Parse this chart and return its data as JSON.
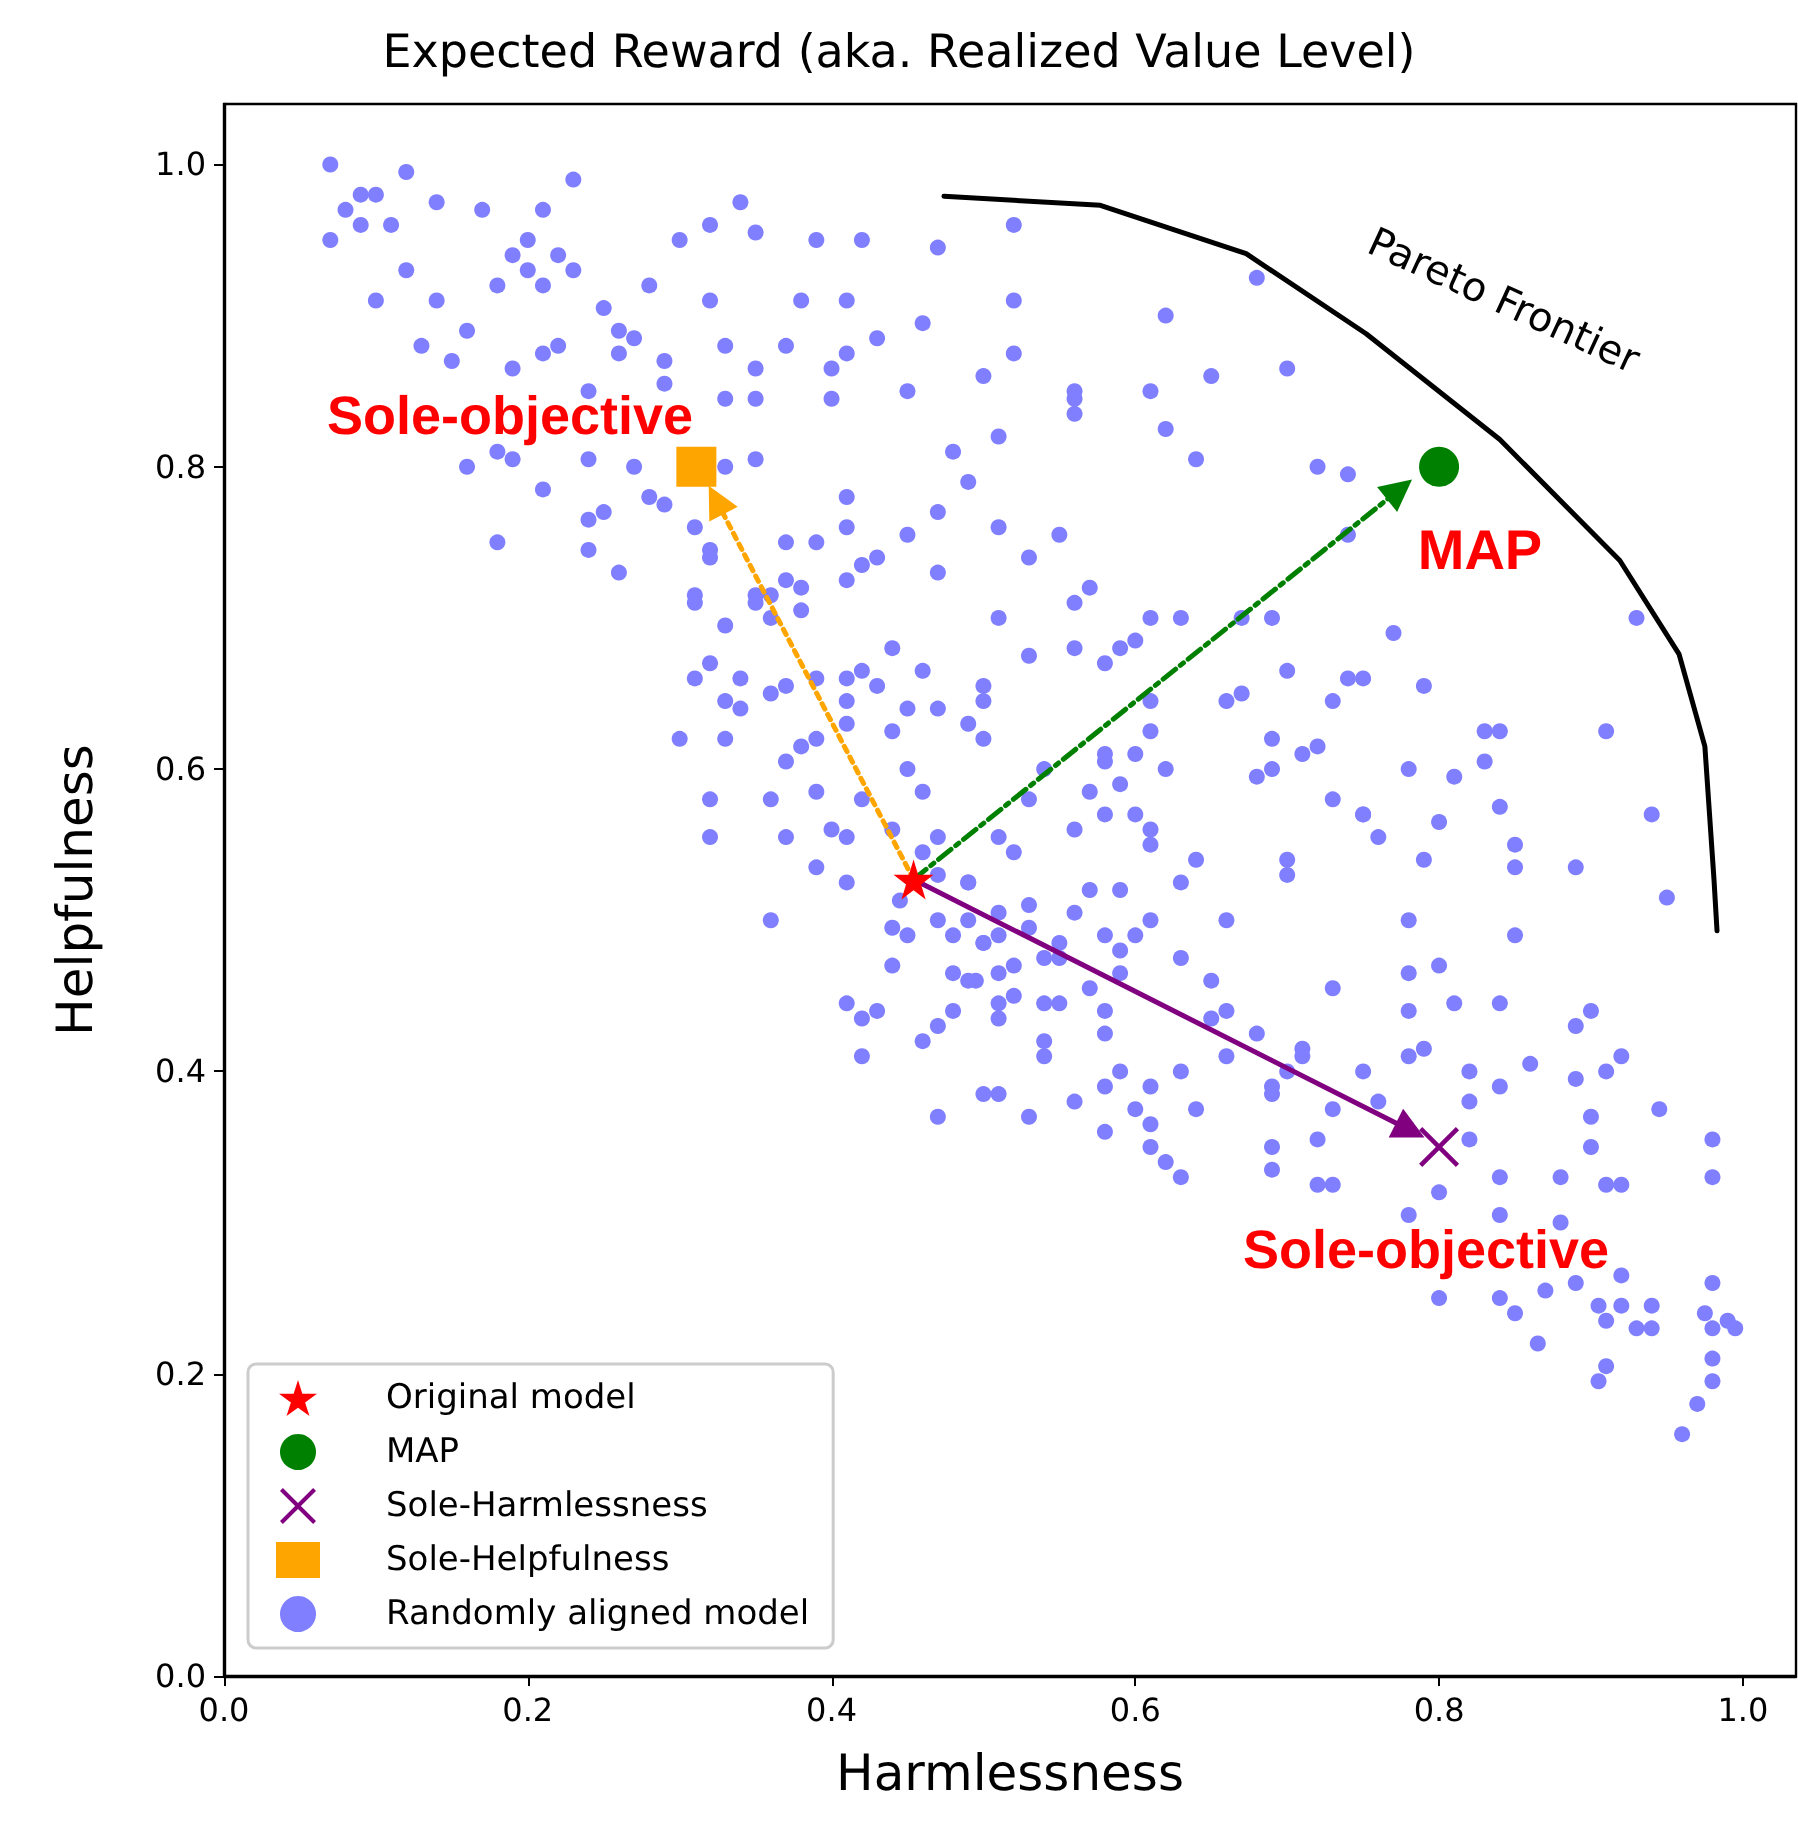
{
  "chart_data": {
    "type": "scatter",
    "title": "Expected Reward (aka. Realized Value Level)",
    "xlabel": "Harmlessness",
    "ylabel": "Helpfulness",
    "xlim": [
      0,
      1.035
    ],
    "ylim": [
      0,
      1.04
    ],
    "xticks": [
      {
        "value": 0,
        "label": "0.0"
      },
      {
        "value": 0.2,
        "label": "0.2"
      },
      {
        "value": 0.4,
        "label": "0.4"
      },
      {
        "value": 0.6,
        "label": "0.6"
      },
      {
        "value": 0.8,
        "label": "0.8"
      },
      {
        "value": 1,
        "label": "1.0"
      }
    ],
    "yticks": [
      {
        "value": 0,
        "label": "0.0"
      },
      {
        "value": 0.2,
        "label": "0.2"
      },
      {
        "value": 0.4,
        "label": "0.4"
      },
      {
        "value": 0.6,
        "label": "0.6"
      },
      {
        "value": 0.8,
        "label": "0.8"
      },
      {
        "value": 1,
        "label": "1.0"
      }
    ],
    "grid": false,
    "legend": "bottom left",
    "annotations": [
      "Sole-objective",
      "Pareto Frontier",
      "MAP",
      "Sole-objective"
    ],
    "series": [
      {
        "name": "Original model",
        "color": "#ff0000",
        "marker": "star",
        "x": [
          0.454
        ],
        "values": [
          0.527
        ]
      },
      {
        "name": "MAP",
        "color": "#008000",
        "marker": "circle",
        "x": [
          0.8
        ],
        "values": [
          0.8
        ]
      },
      {
        "name": "Sole-Harmlessness",
        "color": "#800080",
        "marker": "cross",
        "x": [
          0.8
        ],
        "values": [
          0.35
        ]
      },
      {
        "name": "Sole-Helpfulness",
        "color": "#ffa500",
        "marker": "square",
        "x": [
          0.311
        ],
        "values": [
          0.8
        ]
      },
      {
        "name": "Randomly aligned model",
        "color": "#7f7fff",
        "marker": "circle",
        "x": [
          0.07,
          0.09,
          0.1,
          0.08,
          0.09,
          0.11,
          0.12,
          0.07,
          0.12,
          0.14,
          0.17,
          0.1,
          0.14,
          0.21,
          0.23,
          0.2,
          0.19,
          0.2,
          0.18,
          0.22,
          0.23,
          0.21,
          0.13,
          0.15,
          0.16,
          0.19,
          0.21,
          0.22,
          0.25,
          0.26,
          0.27,
          0.26,
          0.29,
          0.29,
          0.24,
          0.28,
          0.3,
          0.32,
          0.34,
          0.35,
          0.32,
          0.33,
          0.35,
          0.35,
          0.33,
          0.39,
          0.42,
          0.47,
          0.38,
          0.41,
          0.46,
          0.43,
          0.37,
          0.41,
          0.4,
          0.4,
          0.45,
          0.5,
          0.16,
          0.18,
          0.19,
          0.21,
          0.24,
          0.27,
          0.28,
          0.29,
          0.24,
          0.25,
          0.18,
          0.24,
          0.26,
          0.35,
          0.33,
          0.31,
          0.32,
          0.32,
          0.37,
          0.39,
          0.41,
          0.41,
          0.45,
          0.43,
          0.42,
          0.41,
          0.47,
          0.48,
          0.49,
          0.47,
          0.31,
          0.31,
          0.33,
          0.35,
          0.36,
          0.37,
          0.38,
          0.35,
          0.36,
          0.38,
          0.32,
          0.31,
          0.34,
          0.33,
          0.34,
          0.36,
          0.37,
          0.39,
          0.41,
          0.41,
          0.42,
          0.43,
          0.44,
          0.46,
          0.45,
          0.47,
          0.3,
          0.33,
          0.37,
          0.38,
          0.39,
          0.41,
          0.44,
          0.5,
          0.32,
          0.36,
          0.39,
          0.42,
          0.45,
          0.46,
          0.32,
          0.37,
          0.4,
          0.41,
          0.39,
          0.47,
          0.36,
          0.41,
          0.44,
          0.41,
          0.42,
          0.43,
          0.42,
          0.46,
          0.47,
          0.48,
          0.5,
          0.47,
          0.48,
          0.49,
          0.445,
          0.45,
          0.47,
          0.47,
          0.49,
          0.5,
          0.49,
          0.48,
          0.44,
          0.46,
          0.44,
          0.49,
          0.51,
          0.53,
          0.53,
          0.55,
          0.56,
          0.51,
          0.5,
          0.495,
          0.51,
          0.52,
          0.54,
          0.55,
          0.51,
          0.51,
          0.52,
          0.54,
          0.55,
          0.54,
          0.54,
          0.51,
          0.53,
          0.56,
          0.57,
          0.58,
          0.57,
          0.59,
          0.61,
          0.6,
          0.59,
          0.59,
          0.58,
          0.58,
          0.58,
          0.59,
          0.6,
          0.61,
          0.63,
          0.64,
          0.61,
          0.58,
          0.61,
          0.62,
          0.63,
          0.63,
          0.63,
          0.64,
          0.61,
          0.61,
          0.65,
          0.65,
          0.66,
          0.66,
          0.66,
          0.68,
          0.69,
          0.69,
          0.69,
          0.69,
          0.7,
          0.71,
          0.71,
          0.72,
          0.72,
          0.73,
          0.73,
          0.7,
          0.7,
          0.73,
          0.75,
          0.76,
          0.76,
          0.75,
          0.78,
          0.78,
          0.8,
          0.78,
          0.78,
          0.79,
          0.81,
          0.82,
          0.82,
          0.84,
          0.84,
          0.85,
          0.86,
          0.89,
          0.9,
          0.89,
          0.91,
          0.92,
          0.945,
          0.9,
          0.9,
          0.91,
          0.92,
          0.98,
          0.98,
          0.88,
          0.84,
          0.82,
          0.8,
          0.84,
          0.78,
          0.88,
          0.92,
          0.89,
          0.87,
          0.84,
          0.85,
          0.865,
          0.8,
          0.905,
          0.92,
          0.91,
          0.91,
          0.905,
          0.93,
          0.94,
          0.94,
          0.975,
          0.98,
          0.99,
          0.995,
          0.98,
          0.98,
          0.98,
          0.97,
          0.96,
          0.95,
          0.94,
          0.52,
          0.52,
          0.52,
          0.62,
          0.68,
          0.56,
          0.56,
          0.56,
          0.61,
          0.65,
          0.7,
          0.62,
          0.51,
          0.64,
          0.72,
          0.74,
          0.51,
          0.55,
          0.74,
          0.53,
          0.57,
          0.56,
          0.51,
          0.61,
          0.63,
          0.67,
          0.69,
          0.77,
          0.93,
          0.53,
          0.56,
          0.58,
          0.59,
          0.6,
          0.5,
          0.49,
          0.5,
          0.61,
          0.66,
          0.67,
          0.7,
          0.74,
          0.75,
          0.79,
          0.73,
          0.83,
          0.84,
          0.91,
          0.61,
          0.69,
          0.71,
          0.72,
          0.69,
          0.68,
          0.83,
          0.78,
          0.81,
          0.58,
          0.58,
          0.6,
          0.54,
          0.62,
          0.59,
          0.57,
          0.53,
          0.58,
          0.6,
          0.56,
          0.73,
          0.75,
          0.8,
          0.84,
          0.85,
          0.89,
          0.85,
          0.79,
          0.51,
          0.52
        ],
        "values": [
          1.0,
          0.98,
          0.98,
          0.97,
          0.96,
          0.96,
          0.995,
          0.95,
          0.93,
          0.975,
          0.97,
          0.91,
          0.91,
          0.97,
          0.99,
          0.95,
          0.94,
          0.93,
          0.92,
          0.94,
          0.93,
          0.92,
          0.88,
          0.87,
          0.89,
          0.865,
          0.875,
          0.88,
          0.905,
          0.89,
          0.885,
          0.875,
          0.87,
          0.855,
          0.85,
          0.92,
          0.95,
          0.96,
          0.975,
          0.955,
          0.91,
          0.88,
          0.865,
          0.845,
          0.845,
          0.95,
          0.95,
          0.945,
          0.91,
          0.91,
          0.895,
          0.885,
          0.88,
          0.875,
          0.865,
          0.845,
          0.85,
          0.86,
          0.8,
          0.81,
          0.805,
          0.785,
          0.805,
          0.8,
          0.78,
          0.775,
          0.765,
          0.77,
          0.75,
          0.745,
          0.73,
          0.805,
          0.8,
          0.76,
          0.745,
          0.74,
          0.75,
          0.75,
          0.78,
          0.76,
          0.755,
          0.74,
          0.735,
          0.725,
          0.73,
          0.81,
          0.79,
          0.77,
          0.715,
          0.71,
          0.695,
          0.715,
          0.715,
          0.725,
          0.72,
          0.71,
          0.7,
          0.705,
          0.67,
          0.66,
          0.66,
          0.645,
          0.64,
          0.65,
          0.655,
          0.66,
          0.645,
          0.66,
          0.665,
          0.655,
          0.68,
          0.665,
          0.64,
          0.64,
          0.62,
          0.62,
          0.605,
          0.615,
          0.62,
          0.63,
          0.625,
          0.645,
          0.58,
          0.58,
          0.585,
          0.58,
          0.6,
          0.585,
          0.555,
          0.555,
          0.56,
          0.555,
          0.535,
          0.555,
          0.5,
          0.525,
          0.47,
          0.445,
          0.435,
          0.44,
          0.41,
          0.42,
          0.43,
          0.44,
          0.385,
          0.37,
          0.465,
          0.46,
          0.513,
          0.49,
          0.5,
          0.53,
          0.525,
          0.485,
          0.5,
          0.49,
          0.495,
          0.545,
          0.56,
          0.525,
          0.505,
          0.51,
          0.495,
          0.485,
          0.505,
          0.49,
          0.485,
          0.46,
          0.465,
          0.47,
          0.475,
          0.475,
          0.435,
          0.445,
          0.45,
          0.445,
          0.445,
          0.42,
          0.41,
          0.385,
          0.37,
          0.38,
          0.455,
          0.49,
          0.52,
          0.52,
          0.5,
          0.49,
          0.48,
          0.465,
          0.44,
          0.425,
          0.39,
          0.4,
          0.375,
          0.39,
          0.4,
          0.375,
          0.365,
          0.36,
          0.35,
          0.34,
          0.33,
          0.475,
          0.525,
          0.54,
          0.55,
          0.56,
          0.46,
          0.435,
          0.44,
          0.41,
          0.5,
          0.425,
          0.39,
          0.385,
          0.35,
          0.335,
          0.4,
          0.41,
          0.415,
          0.355,
          0.325,
          0.325,
          0.455,
          0.54,
          0.53,
          0.375,
          0.4,
          0.38,
          0.555,
          0.57,
          0.5,
          0.465,
          0.47,
          0.44,
          0.41,
          0.415,
          0.445,
          0.4,
          0.38,
          0.39,
          0.445,
          0.49,
          0.405,
          0.43,
          0.44,
          0.395,
          0.4,
          0.41,
          0.375,
          0.37,
          0.35,
          0.325,
          0.325,
          0.355,
          0.33,
          0.33,
          0.33,
          0.355,
          0.32,
          0.305,
          0.305,
          0.3,
          0.265,
          0.26,
          0.255,
          0.25,
          0.24,
          0.22,
          0.25,
          0.245,
          0.245,
          0.235,
          0.205,
          0.195,
          0.23,
          0.23,
          0.245,
          0.24,
          0.23,
          0.235,
          0.23,
          0.26,
          0.21,
          0.195,
          0.18,
          0.16,
          0.515,
          0.57,
          0.96,
          0.91,
          0.875,
          0.9,
          0.925,
          0.85,
          0.845,
          0.835,
          0.85,
          0.86,
          0.865,
          0.825,
          0.82,
          0.805,
          0.8,
          0.795,
          0.76,
          0.755,
          0.755,
          0.74,
          0.72,
          0.71,
          0.7,
          0.7,
          0.7,
          0.7,
          0.7,
          0.69,
          0.7,
          0.675,
          0.68,
          0.67,
          0.68,
          0.685,
          0.655,
          0.63,
          0.62,
          0.645,
          0.645,
          0.65,
          0.665,
          0.66,
          0.66,
          0.655,
          0.645,
          0.625,
          0.625,
          0.625,
          0.625,
          0.62,
          0.61,
          0.615,
          0.6,
          0.595,
          0.605,
          0.6,
          0.595,
          0.605,
          0.61,
          0.61,
          0.6,
          0.6,
          0.59,
          0.585,
          0.58,
          0.57,
          0.57,
          0.56,
          0.58,
          0.57,
          0.565,
          0.575,
          0.55,
          0.535,
          0.535,
          0.54,
          0.555,
          0.545
        ]
      },
      {
        "type": "line",
        "color": "#000000",
        "marker": "none",
        "line_style": "solid",
        "x": [
          0.474,
          0.577,
          0.673,
          0.752,
          0.84,
          0.919,
          0.958,
          0.975,
          0.981,
          0.983
        ],
        "values": [
          0.979,
          0.973,
          0.941,
          0.888,
          0.818,
          0.738,
          0.676,
          0.615,
          0.527,
          0.493
        ]
      },
      {
        "type": "line",
        "color": "#ffa500",
        "marker": "triangle",
        "line_style": "dotted",
        "x": [
          0.454,
          0.324
        ],
        "values": [
          0.527,
          0.778
        ]
      },
      {
        "type": "line",
        "color": "#008000",
        "marker": "triangle",
        "line_style": "dashed",
        "x": [
          0.454,
          0.774
        ],
        "values": [
          0.527,
          0.785
        ]
      },
      {
        "type": "line",
        "color": "#800080",
        "marker": "triangle",
        "line_style": "solid",
        "x": [
          0.454,
          0.781
        ],
        "values": [
          0.527,
          0.361
        ]
      }
    ]
  }
}
